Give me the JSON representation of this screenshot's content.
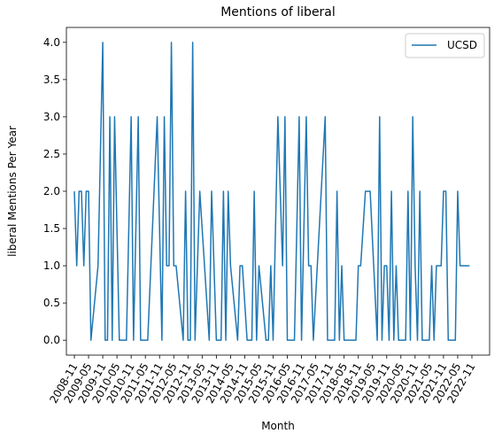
{
  "chart_data": {
    "type": "line",
    "title": "Mentions of liberal",
    "xlabel": "Month",
    "ylabel": "liberal Mentions Per Year",
    "ylim": [
      -0.2,
      4.2
    ],
    "yticks": [
      {
        "value": 0,
        "label": "0.0"
      },
      0.5,
      {
        "value": 1,
        "label": "1.0"
      },
      1.5,
      {
        "value": 2,
        "label": "2.0"
      },
      2.5,
      {
        "value": 3,
        "label": "3.0"
      },
      3.5,
      {
        "value": 4,
        "label": "4.0"
      }
    ],
    "xticks": [
      "2008-11",
      "2009-05",
      "2009-11",
      "2010-05",
      "2010-11",
      "2011-05",
      "2011-11",
      "2012-05",
      "2012-11",
      "2013-05",
      "2013-11",
      "2014-05",
      "2014-11",
      "2015-05",
      "2015-11",
      "2016-05",
      "2016-11",
      "2017-05",
      "2017-11",
      "2018-05",
      "2018-11",
      "2019-05",
      "2019-11",
      "2020-05",
      "2020-11",
      "2021-05",
      "2021-11",
      "2022-05",
      "2022-11"
    ],
    "legend": "upper right",
    "x": [
      "2008-11",
      "2008-12",
      "2009-01",
      "2009-02",
      "2009-03",
      "2009-04",
      "2009-05",
      "2009-06",
      "2009-09",
      "2009-11",
      "2009-12",
      "2010-01",
      "2010-02",
      "2010-03",
      "2010-04",
      "2010-06",
      "2010-09",
      "2010-11",
      "2010-12",
      "2011-02",
      "2011-03",
      "2011-06",
      "2011-10",
      "2011-12",
      "2012-01",
      "2012-02",
      "2012-03",
      "2012-04",
      "2012-05",
      "2012-06",
      "2012-09",
      "2012-10",
      "2012-11",
      "2012-12",
      "2013-01",
      "2013-02",
      "2013-04",
      "2013-06",
      "2013-08",
      "2013-09",
      "2013-11",
      "2014-01",
      "2014-02",
      "2014-03",
      "2014-04",
      "2014-05",
      "2014-08",
      "2014-09",
      "2014-10",
      "2014-12",
      "2015-02",
      "2015-03",
      "2015-04",
      "2015-05",
      "2015-08",
      "2015-09",
      "2015-10",
      "2015-11",
      "2016-01",
      "2016-03",
      "2016-04",
      "2016-05",
      "2016-08",
      "2016-10",
      "2016-11",
      "2017-01",
      "2017-02",
      "2017-03",
      "2017-04",
      "2017-09",
      "2017-10",
      "2018-01",
      "2018-02",
      "2018-03",
      "2018-04",
      "2018-05",
      "2018-10",
      "2018-11",
      "2018-12",
      "2019-02",
      "2019-03",
      "2019-04",
      "2019-07",
      "2019-08",
      "2019-09",
      "2019-10",
      "2019-11",
      "2019-12",
      "2020-01",
      "2020-02",
      "2020-03",
      "2020-04",
      "2020-07",
      "2020-08",
      "2020-09",
      "2020-10",
      "2020-11",
      "2020-12",
      "2021-01",
      "2021-02",
      "2021-05",
      "2021-06",
      "2021-07",
      "2021-08",
      "2021-10",
      "2021-11",
      "2021-12",
      "2022-01",
      "2022-04",
      "2022-05",
      "2022-06",
      "2022-10"
    ],
    "series": [
      {
        "name": "UCSD",
        "color": "#1f77b4",
        "values": [
          2,
          1,
          2,
          2,
          1,
          2,
          2,
          0,
          1,
          4,
          0,
          0,
          3,
          0,
          3,
          0,
          0,
          3,
          0,
          3,
          0,
          0,
          3,
          0,
          3,
          1,
          1,
          4,
          1,
          1,
          0,
          2,
          0,
          0,
          4,
          0,
          2,
          1,
          0,
          2,
          0,
          0,
          2,
          0,
          2,
          1,
          0,
          1,
          1,
          0,
          0,
          2,
          0,
          1,
          0,
          0,
          1,
          0,
          3,
          1,
          3,
          0,
          0,
          3,
          0,
          3,
          1,
          1,
          0,
          3,
          0,
          0,
          2,
          0,
          1,
          0,
          0,
          1,
          1,
          2,
          2,
          2,
          0,
          3,
          0,
          1,
          1,
          0,
          2,
          0,
          1,
          0,
          0,
          2,
          0,
          3,
          1,
          0,
          2,
          0,
          0,
          1,
          0,
          1,
          1,
          2,
          2,
          0,
          0,
          2,
          1,
          1
        ]
      }
    ]
  }
}
